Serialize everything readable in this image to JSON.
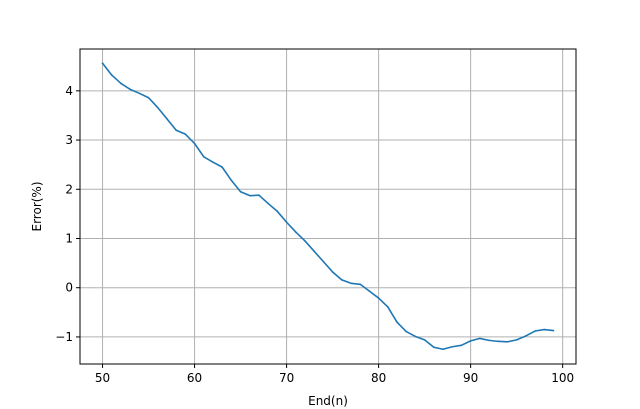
{
  "chart_data": {
    "type": "line",
    "title": "",
    "xlabel": "End(n)",
    "ylabel": "Error(%)",
    "xlim": [
      47.55,
      101.45
    ],
    "ylim": [
      -1.55,
      4.85
    ],
    "xticks": [
      50,
      60,
      70,
      80,
      90,
      100
    ],
    "yticks": [
      -1,
      0,
      1,
      2,
      3,
      4
    ],
    "xtick_labels": [
      "50",
      "60",
      "70",
      "80",
      "90",
      "100"
    ],
    "ytick_labels": [
      "−1",
      "0",
      "1",
      "2",
      "3",
      "4"
    ],
    "grid": true,
    "legend": "none",
    "series": [
      {
        "color": "#1f77b4",
        "x": [
          50,
          51,
          52,
          53,
          54,
          55,
          56,
          57,
          58,
          59,
          60,
          61,
          62,
          63,
          64,
          65,
          66,
          67,
          68,
          69,
          70,
          71,
          72,
          73,
          74,
          75,
          76,
          77,
          78,
          79,
          80,
          81,
          82,
          83,
          84,
          85,
          86,
          87,
          88,
          89,
          90,
          91,
          92,
          93,
          94,
          95,
          96,
          97,
          98,
          99
        ],
        "y": [
          4.56,
          4.32,
          4.15,
          4.03,
          3.95,
          3.86,
          3.66,
          3.43,
          3.2,
          3.12,
          2.93,
          2.66,
          2.55,
          2.45,
          2.18,
          1.95,
          1.87,
          1.88,
          1.71,
          1.55,
          1.33,
          1.13,
          0.95,
          0.74,
          0.53,
          0.32,
          0.16,
          0.09,
          0.07,
          -0.07,
          -0.21,
          -0.39,
          -0.7,
          -0.89,
          -0.99,
          -1.06,
          -1.21,
          -1.25,
          -1.2,
          -1.17,
          -1.08,
          -1.03,
          -1.07,
          -1.09,
          -1.1,
          -1.06,
          -0.98,
          -0.88,
          -0.85,
          -0.87
        ]
      }
    ]
  }
}
